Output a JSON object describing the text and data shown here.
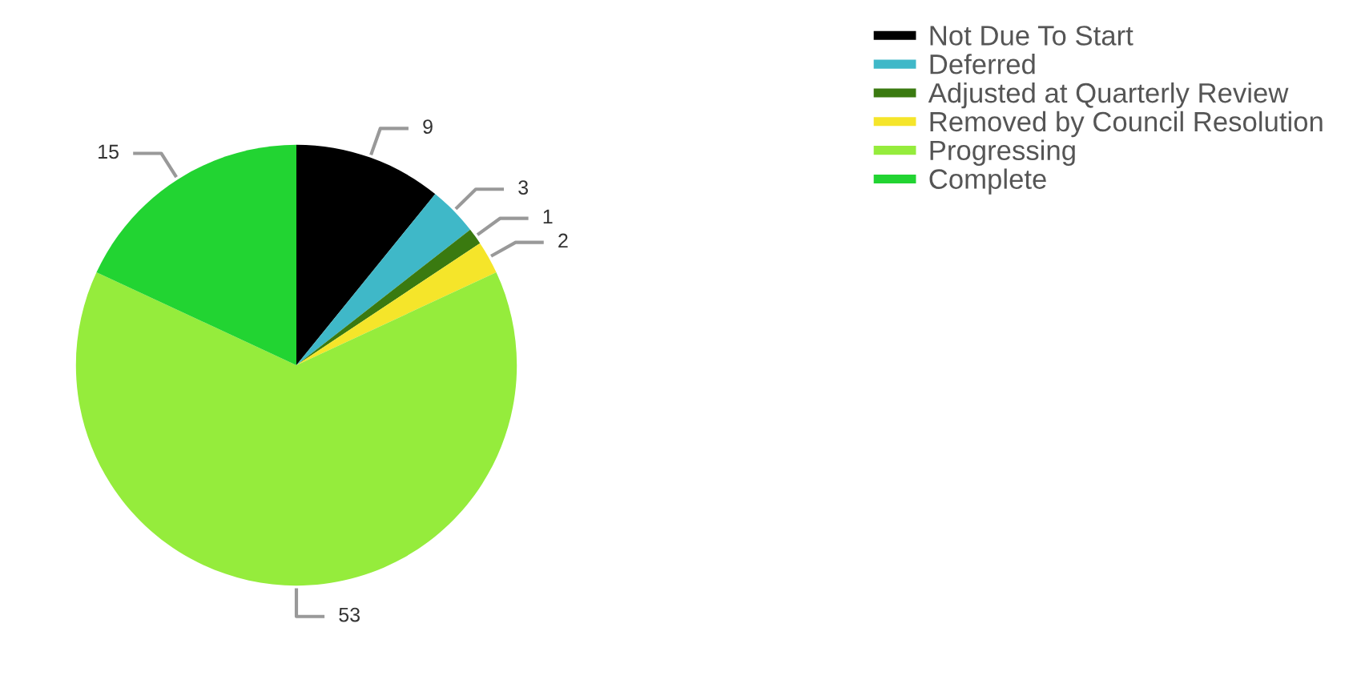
{
  "chart_data": {
    "type": "pie",
    "categories": [
      "Not Due To Start",
      "Deferred",
      "Adjusted at Quarterly Review",
      "Removed by Council Resolution",
      "Progressing",
      "Complete"
    ],
    "values": [
      9,
      3,
      1,
      2,
      53,
      15
    ],
    "colors": [
      "#000000",
      "#3fb8c8",
      "#3a7a10",
      "#f5e52a",
      "#95ec3c",
      "#22d432"
    ],
    "data_labels": true,
    "legend": "top right"
  }
}
